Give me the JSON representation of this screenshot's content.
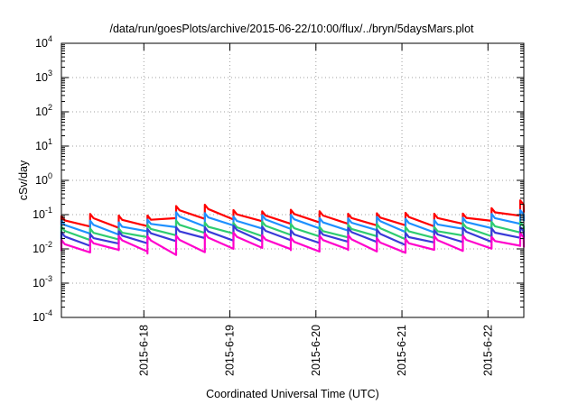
{
  "chart_data": {
    "type": "line",
    "title": "/data/run/goesPlots/archive/2015-06-22/10:00/flux/../bryn/5daysMars.plot",
    "xlabel": "Coordinated Universal Time (UTC)",
    "ylabel": "cSv/day",
    "yscale": "log",
    "ylim": [
      0.0001,
      10000
    ],
    "y_ticks": [
      {
        "base": "10",
        "exp": "-4",
        "value": 0.0001
      },
      {
        "base": "10",
        "exp": "-3",
        "value": 0.001
      },
      {
        "base": "10",
        "exp": "-2",
        "value": 0.01
      },
      {
        "base": "10",
        "exp": "-1",
        "value": 0.1
      },
      {
        "base": "10",
        "exp": "0",
        "value": 1
      },
      {
        "base": "10",
        "exp": "1",
        "value": 10
      },
      {
        "base": "10",
        "exp": "2",
        "value": 100
      },
      {
        "base": "10",
        "exp": "3",
        "value": 1000
      },
      {
        "base": "10",
        "exp": "4",
        "value": 10000
      }
    ],
    "xlim": [
      "2015-06-17T01:00",
      "2015-06-22T10:00"
    ],
    "x_ticks": [
      "2015-6-18",
      "2015-6-19",
      "2015-6-20",
      "2015-6-21",
      "2015-6-22"
    ],
    "grid": true,
    "legend": "none",
    "series": [
      {
        "color": "#ff0000",
        "style": "sawtooth",
        "x": [
          "2015-06-17",
          "2015-06-18",
          "2015-06-18T12:00",
          "2015-06-19",
          "2015-06-19T12:00",
          "2015-06-20",
          "2015-06-20T12:00",
          "2015-06-21",
          "2015-06-21T12:00",
          "2015-06-22",
          "2015-06-22T10:00"
        ],
        "peak": [
          0.09,
          0.1,
          0.2,
          0.15,
          0.13,
          0.12,
          0.12,
          0.1,
          0.11,
          0.14,
          0.25
        ],
        "base": [
          0.04,
          0.045,
          0.09,
          0.07,
          0.06,
          0.055,
          0.055,
          0.045,
          0.05,
          0.06,
          0.11
        ]
      },
      {
        "color": "#1e90ff",
        "style": "sawtooth",
        "x": [
          "2015-06-17",
          "2015-06-18",
          "2015-06-18T12:00",
          "2015-06-19",
          "2015-06-19T12:00",
          "2015-06-20",
          "2015-06-20T12:00",
          "2015-06-21",
          "2015-06-21T12:00",
          "2015-06-22",
          "2015-06-22T10:00"
        ],
        "peak": [
          0.06,
          0.07,
          0.12,
          0.1,
          0.09,
          0.085,
          0.085,
          0.07,
          0.08,
          0.09,
          0.14
        ],
        "base": [
          0.025,
          0.03,
          0.05,
          0.045,
          0.04,
          0.037,
          0.037,
          0.03,
          0.034,
          0.04,
          0.06
        ]
      },
      {
        "color": "#2ecc71",
        "style": "sawtooth",
        "x": [
          "2015-06-17",
          "2015-06-18",
          "2015-06-18T12:00",
          "2015-06-19",
          "2015-06-19T12:00",
          "2015-06-20",
          "2015-06-20T12:00",
          "2015-06-21",
          "2015-06-21T12:00",
          "2015-06-22",
          "2015-06-22T10:00"
        ],
        "peak": [
          0.04,
          0.045,
          0.07,
          0.06,
          0.055,
          0.05,
          0.05,
          0.045,
          0.05,
          0.055,
          0.07
        ],
        "base": [
          0.018,
          0.02,
          0.03,
          0.027,
          0.025,
          0.023,
          0.023,
          0.02,
          0.022,
          0.025,
          0.03
        ]
      },
      {
        "color": "#3a3ad8",
        "style": "sawtooth",
        "x": [
          "2015-06-17",
          "2015-06-18",
          "2015-06-18T12:00",
          "2015-06-19",
          "2015-06-19T12:00",
          "2015-06-20",
          "2015-06-20T12:00",
          "2015-06-21",
          "2015-06-21T12:00",
          "2015-06-22",
          "2015-06-22T10:00"
        ],
        "peak": [
          0.03,
          0.033,
          0.05,
          0.045,
          0.04,
          0.037,
          0.037,
          0.033,
          0.036,
          0.04,
          0.05
        ],
        "base": [
          0.013,
          0.014,
          0.02,
          0.018,
          0.017,
          0.016,
          0.016,
          0.014,
          0.015,
          0.017,
          0.02
        ]
      },
      {
        "color": "#ff00cc",
        "style": "sawtooth",
        "x": [
          "2015-06-17",
          "2015-06-18",
          "2015-06-18T12:00",
          "2015-06-19",
          "2015-06-19T12:00",
          "2015-06-20",
          "2015-06-20T12:00",
          "2015-06-21",
          "2015-06-21T12:00",
          "2015-06-22",
          "2015-06-22T10:00"
        ],
        "peak": [
          0.02,
          0.022,
          0.03,
          0.027,
          0.025,
          0.023,
          0.023,
          0.021,
          0.022,
          0.025,
          0.03
        ],
        "base": [
          0.008,
          0.009,
          0.006,
          0.011,
          0.01,
          0.009,
          0.009,
          0.008,
          0.009,
          0.01,
          0.012
        ]
      }
    ]
  }
}
